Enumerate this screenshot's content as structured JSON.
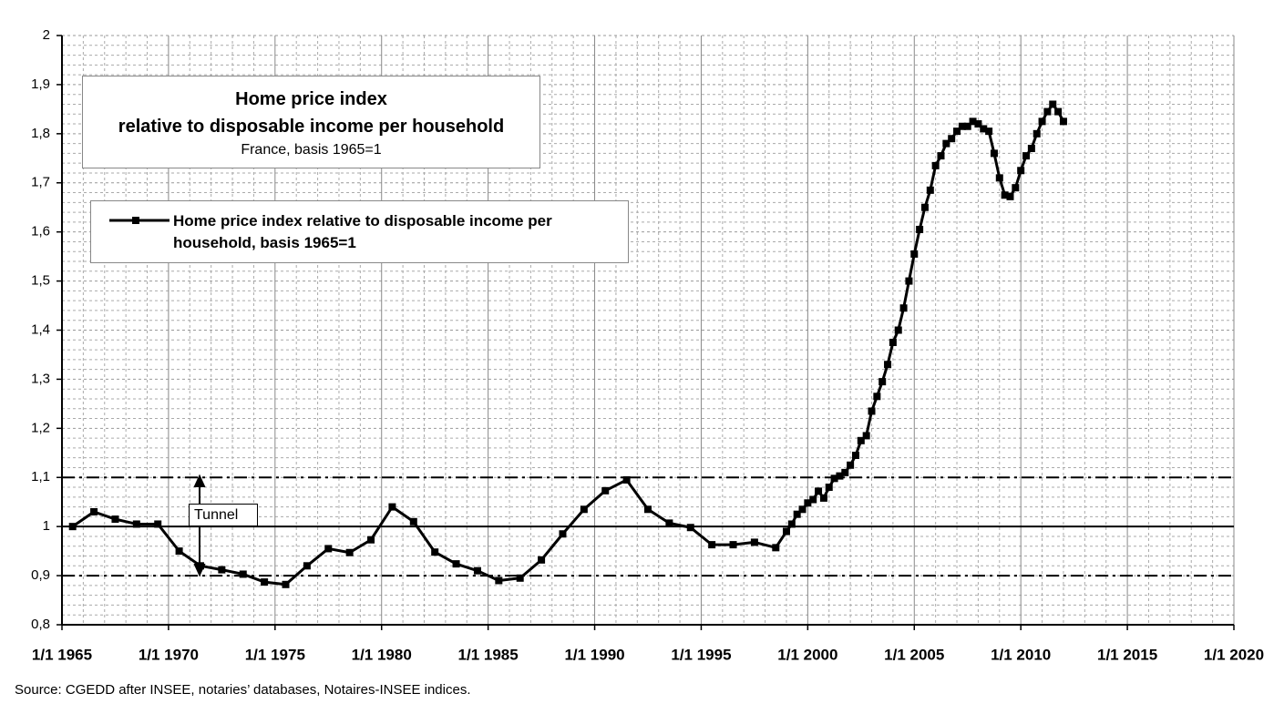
{
  "chart_data": {
    "type": "line",
    "title": [
      "Home price index",
      "relative to disposable income per household"
    ],
    "subtitle": "France, basis 1965=1",
    "annotation": "Tunnel",
    "source": "Source: CGEDD after INSEE, notaries’ databases, Notaires-INSEE indices.",
    "x": [
      1965.5,
      1966.5,
      1967.5,
      1968.5,
      1969.5,
      1970.5,
      1971.5,
      1972.5,
      1973.5,
      1974.5,
      1975.5,
      1976.5,
      1977.5,
      1978.5,
      1979.5,
      1980.5,
      1981.5,
      1982.5,
      1983.5,
      1984.5,
      1985.5,
      1986.5,
      1987.5,
      1988.5,
      1989.5,
      1990.5,
      1991.5,
      1992.5,
      1993.5,
      1994.5,
      1995.5,
      1996.5,
      1997.5,
      1998.5,
      1999,
      1999.25,
      1999.5,
      1999.75,
      2000,
      2000.25,
      2000.5,
      2000.75,
      2001,
      2001.25,
      2001.5,
      2001.75,
      2002,
      2002.25,
      2002.5,
      2002.75,
      2003,
      2003.25,
      2003.5,
      2003.75,
      2004,
      2004.25,
      2004.5,
      2004.75,
      2005,
      2005.25,
      2005.5,
      2005.75,
      2006,
      2006.25,
      2006.5,
      2006.75,
      2007,
      2007.25,
      2007.5,
      2007.75,
      2008,
      2008.25,
      2008.5,
      2008.75,
      2009,
      2009.25,
      2009.5,
      2009.75,
      2010,
      2010.25,
      2010.5,
      2010.75,
      2011,
      2011.25,
      2011.5,
      2011.75,
      2012
    ],
    "series": [
      {
        "name": "Home price index relative to disposable income per household, basis 1965=1",
        "color": "#000000",
        "values": [
          1.0,
          1.03,
          1.015,
          1.005,
          1.005,
          0.95,
          0.92,
          0.912,
          0.903,
          0.887,
          0.882,
          0.92,
          0.955,
          0.947,
          0.973,
          1.04,
          1.01,
          0.948,
          0.924,
          0.91,
          0.89,
          0.895,
          0.932,
          0.985,
          1.035,
          1.073,
          1.095,
          1.035,
          1.007,
          0.998,
          0.963,
          0.963,
          0.968,
          0.957,
          0.99,
          1.005,
          1.025,
          1.035,
          1.048,
          1.055,
          1.072,
          1.058,
          1.08,
          1.098,
          1.103,
          1.11,
          1.125,
          1.145,
          1.175,
          1.185,
          1.235,
          1.265,
          1.295,
          1.33,
          1.375,
          1.4,
          1.445,
          1.5,
          1.555,
          1.605,
          1.65,
          1.685,
          1.735,
          1.755,
          1.78,
          1.79,
          1.805,
          1.815,
          1.815,
          1.825,
          1.82,
          1.81,
          1.805,
          1.76,
          1.71,
          1.675,
          1.672,
          1.69,
          1.725,
          1.755,
          1.77,
          1.8,
          1.825,
          1.845,
          1.86,
          1.845,
          1.825
        ]
      }
    ],
    "reference_lines": [
      {
        "value": 1.1,
        "style": "dashdot"
      },
      {
        "value": 1,
        "style": "solid"
      },
      {
        "value": 0.9,
        "style": "dashdot"
      }
    ],
    "xlim": [
      1965,
      2020
    ],
    "xticks": [
      {
        "value": 1965,
        "label": "1/1 1965"
      },
      {
        "value": 1970,
        "label": "1/1 1970"
      },
      {
        "value": 1975,
        "label": "1/1 1975"
      },
      {
        "value": 1980,
        "label": "1/1 1980"
      },
      {
        "value": 1985,
        "label": "1/1 1985"
      },
      {
        "value": 1990,
        "label": "1/1 1990"
      },
      {
        "value": 1995,
        "label": "1/1 1995"
      },
      {
        "value": 2000,
        "label": "1/1 2000"
      },
      {
        "value": 2005,
        "label": "1/1 2005"
      },
      {
        "value": 2010,
        "label": "1/1 2010"
      },
      {
        "value": 2015,
        "label": "1/1 2015"
      },
      {
        "value": 2020,
        "label": "1/1 2020"
      }
    ],
    "ylim": [
      0.8,
      2
    ],
    "yticks": [
      {
        "value": 0.8,
        "label": "0,8"
      },
      {
        "value": 0.9,
        "label": "0,9"
      },
      1,
      {
        "value": 1.1,
        "label": "1,1"
      },
      {
        "value": 1.2,
        "label": "1,2"
      },
      {
        "value": 1.3,
        "label": "1,3"
      },
      {
        "value": 1.4,
        "label": "1,4"
      },
      {
        "value": 1.5,
        "label": "1,5"
      },
      {
        "value": 1.6,
        "label": "1,6"
      },
      {
        "value": 1.7,
        "label": "1,7"
      },
      {
        "value": 1.8,
        "label": "1,8"
      },
      {
        "value": 1.9,
        "label": "1,9"
      },
      2
    ],
    "grid": true
  }
}
